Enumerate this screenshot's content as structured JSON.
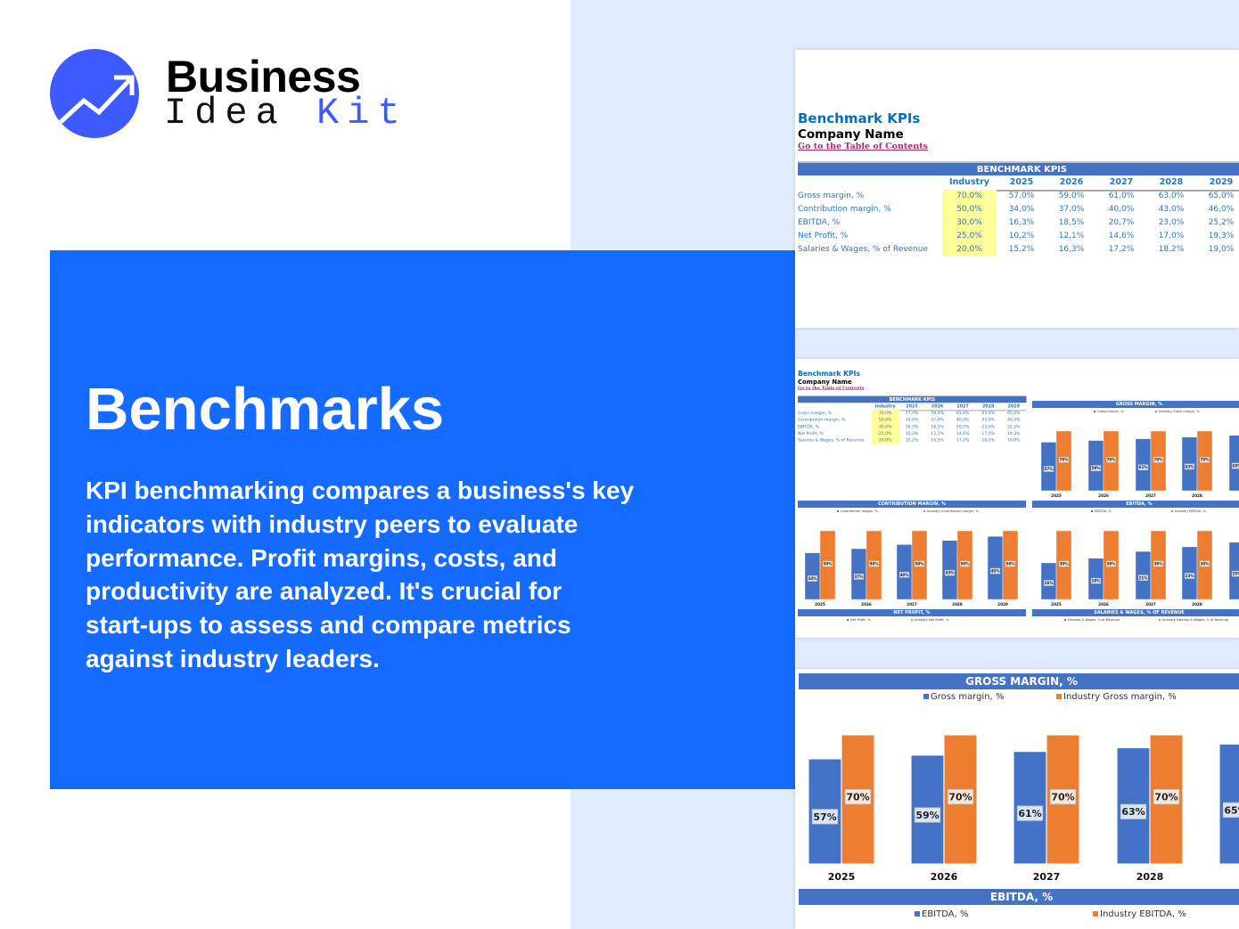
{
  "brand": {
    "word1": "Business",
    "word2": "Idea",
    "word3": "Kit",
    "color": "#3d5afe"
  },
  "hero": {
    "title": "Benchmarks",
    "description_lines": [
      "KPI benchmarking compares a business's key",
      "indicators with industry peers to evaluate",
      "performance. Profit margins, costs, and",
      "productivity are analyzed. It's crucial for",
      "start-ups to assess and compare metrics",
      "against industry leaders."
    ],
    "panel_color": "#156bff"
  },
  "sheet": {
    "title": "Benchmark KPIs",
    "company": "Company Name",
    "link": "Go to the Table of Contents",
    "table_title": "BENCHMARK KPIS",
    "columns": [
      "",
      "Industry",
      "2025",
      "2026",
      "2027",
      "2028",
      "2029"
    ],
    "rows": [
      [
        "Gross margin, %",
        "70,0%",
        "57,0%",
        "59,0%",
        "61,0%",
        "63,0%",
        "65,0%"
      ],
      [
        "Contribution margin, %",
        "50,0%",
        "34,0%",
        "37,0%",
        "40,0%",
        "43,0%",
        "46,0%"
      ],
      [
        "EBITDA, %",
        "30,0%",
        "16,3%",
        "18,5%",
        "20,7%",
        "23,0%",
        "25,2%"
      ],
      [
        "Net Profit, %",
        "25,0%",
        "10,2%",
        "12,1%",
        "14,6%",
        "17,0%",
        "19,3%"
      ],
      [
        "Salaries & Wages, % of Revenue",
        "20,0%",
        "15,2%",
        "16,3%",
        "17,2%",
        "18,2%",
        "19,0%"
      ]
    ]
  },
  "colors": {
    "company_series": "#4472c4",
    "industry_series": "#ed7d31",
    "header_bar": "#4472c4",
    "industry_highlight": "#ffff99"
  },
  "chart_data": [
    {
      "type": "bar",
      "title": "GROSS MARGIN, %",
      "categories": [
        "2025",
        "2026",
        "2027",
        "2028",
        "2029"
      ],
      "series": [
        {
          "name": "Gross margin, %",
          "values": [
            57,
            59,
            61,
            63,
            65
          ]
        },
        {
          "name": "Industry Gross margin, %",
          "values": [
            70,
            70,
            70,
            70,
            70
          ]
        }
      ]
    },
    {
      "type": "bar",
      "title": "CONTRIBUTION MARGIN, %",
      "categories": [
        "2025",
        "2026",
        "2027",
        "2028",
        "2029"
      ],
      "series": [
        {
          "name": "Contribution margin, %",
          "values": [
            34,
            37,
            40,
            43,
            46
          ]
        },
        {
          "name": "Industry Contribution margin, %",
          "values": [
            50,
            50,
            50,
            50,
            50
          ]
        }
      ]
    },
    {
      "type": "bar",
      "title": "EBITDA, %",
      "categories": [
        "2025",
        "2026",
        "2027",
        "2028",
        "2029"
      ],
      "series": [
        {
          "name": "EBITDA, %",
          "values": [
            16,
            18,
            21,
            23,
            25
          ]
        },
        {
          "name": "Industry EBITDA, %",
          "values": [
            30,
            30,
            30,
            30,
            30
          ]
        }
      ]
    },
    {
      "type": "bar",
      "title": "NET PROFIT, %",
      "categories": [],
      "series": [
        {
          "name": "Net Profit, %",
          "values": []
        },
        {
          "name": "Industry Net Profit, %",
          "values": []
        }
      ]
    },
    {
      "type": "bar",
      "title": "SALARIES & WAGES, % OF REVENUE",
      "categories": [],
      "series": [
        {
          "name": "Salaries & Wages, % of Revenue",
          "values": []
        },
        {
          "name": "Industry Salaries & Wages, % of Revenue",
          "values": []
        }
      ]
    }
  ]
}
